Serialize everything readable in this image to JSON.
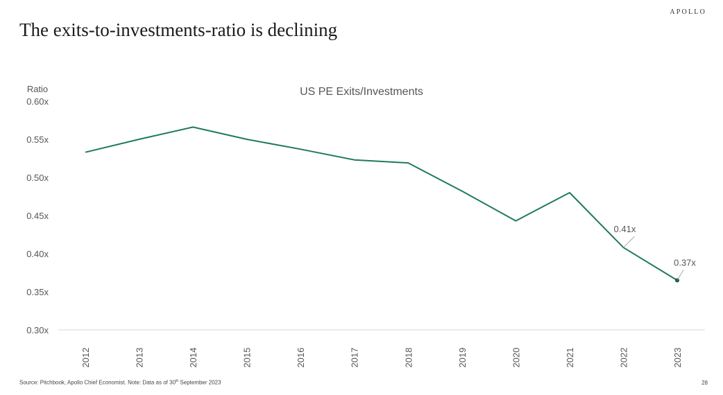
{
  "header": {
    "brand": "APOLLO",
    "title": "The exits-to-investments-ratio is declining"
  },
  "chart_data": {
    "type": "line",
    "title": "US PE Exits/Investments",
    "ylabel": "Ratio",
    "xlabel": "",
    "categories": [
      "2012",
      "2013",
      "2014",
      "2015",
      "2016",
      "2017",
      "2018",
      "2019",
      "2020",
      "2021",
      "2022",
      "2023"
    ],
    "series": [
      {
        "name": "",
        "values": [
          0.533,
          0.55,
          0.566,
          0.55,
          0.537,
          0.523,
          0.519,
          0.482,
          0.443,
          0.48,
          0.408,
          0.365
        ],
        "color": "#1e7b55"
      }
    ],
    "ylim": [
      0.3,
      0.6
    ],
    "yticks": [
      0.3,
      0.35,
      0.4,
      0.45,
      0.5,
      0.55,
      0.6
    ],
    "ytick_labels": [
      "0.30x",
      "0.35x",
      "0.40x",
      "0.45x",
      "0.50x",
      "0.55x",
      "0.60x"
    ],
    "annotations": [
      {
        "category": "2022",
        "text": "0.41x"
      },
      {
        "category": "2023",
        "text": "0.37x"
      }
    ],
    "grid": false,
    "legend": "none",
    "line_color": "#1e7b55",
    "axis_color": "#d9d9d9"
  },
  "footer": {
    "source_prefix": "Source: Pitchbook, Apollo Chief Economist. Note: Data as of 30",
    "source_sup": "th",
    "source_suffix": " September 2023",
    "page_number": "28"
  }
}
